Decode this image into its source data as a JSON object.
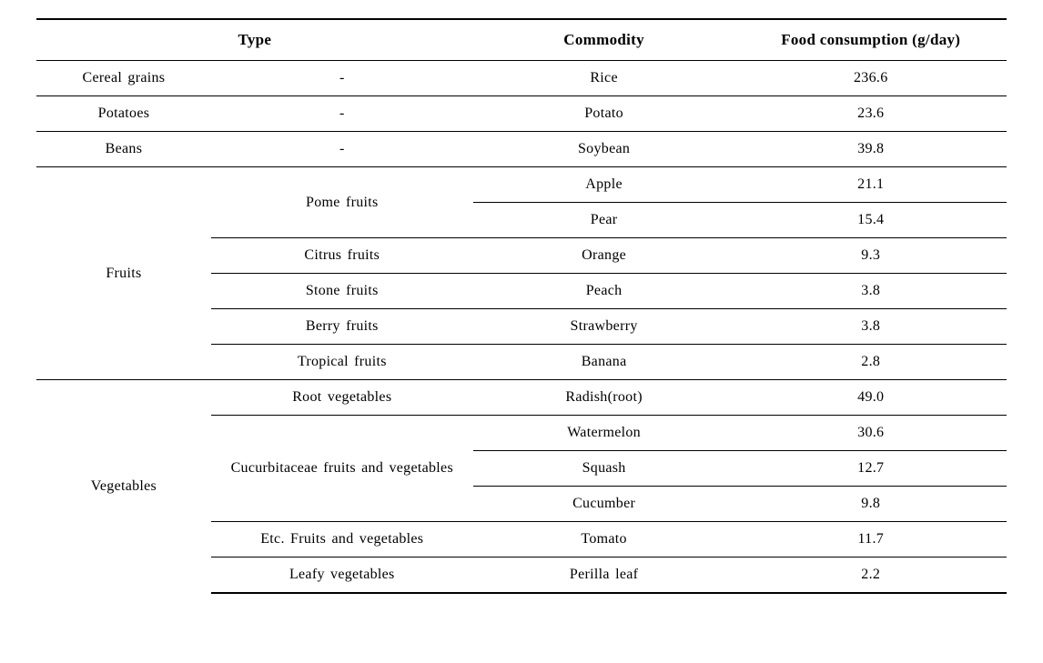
{
  "columns": {
    "type": "Type",
    "commodity": "Commodity",
    "consumption": "Food consumption (g/day)"
  },
  "rows": [
    {
      "type1": "Cereal grains",
      "type2": "-",
      "commodity": "Rice",
      "consumption": "236.6"
    },
    {
      "type1": "Potatoes",
      "type2": "-",
      "commodity": "Potato",
      "consumption": "23.6"
    },
    {
      "type1": "Beans",
      "type2": "-",
      "commodity": "Soybean",
      "consumption": "39.8"
    },
    {
      "type1": "Fruits",
      "type2": "Pome fruits",
      "commodity": "Apple",
      "consumption": "21.1"
    },
    {
      "type1": "",
      "type2": "",
      "commodity": "Pear",
      "consumption": "15.4"
    },
    {
      "type1": "",
      "type2": "Citrus fruits",
      "commodity": "Orange",
      "consumption": "9.3"
    },
    {
      "type1": "",
      "type2": "Stone fruits",
      "commodity": "Peach",
      "consumption": "3.8"
    },
    {
      "type1": "",
      "type2": "Berry fruits",
      "commodity": "Strawberry",
      "consumption": "3.8"
    },
    {
      "type1": "",
      "type2": "Tropical fruits",
      "commodity": "Banana",
      "consumption": "2.8"
    },
    {
      "type1": "Vegetables",
      "type2": "Root vegetables",
      "commodity": "Radish(root)",
      "consumption": "49.0"
    },
    {
      "type1": "",
      "type2": "Cucurbitaceae fruits and vegetables",
      "commodity": "Watermelon",
      "consumption": "30.6"
    },
    {
      "type1": "",
      "type2": "",
      "commodity": "Squash",
      "consumption": "12.7"
    },
    {
      "type1": "",
      "type2": "",
      "commodity": "Cucumber",
      "consumption": "9.8"
    },
    {
      "type1": "",
      "type2": "Etc. Fruits and vegetables",
      "commodity": "Tomato",
      "consumption": "11.7"
    },
    {
      "type1": "",
      "type2": "Leafy vegetables",
      "commodity": "Perilla leaf",
      "consumption": "2.2"
    }
  ]
}
